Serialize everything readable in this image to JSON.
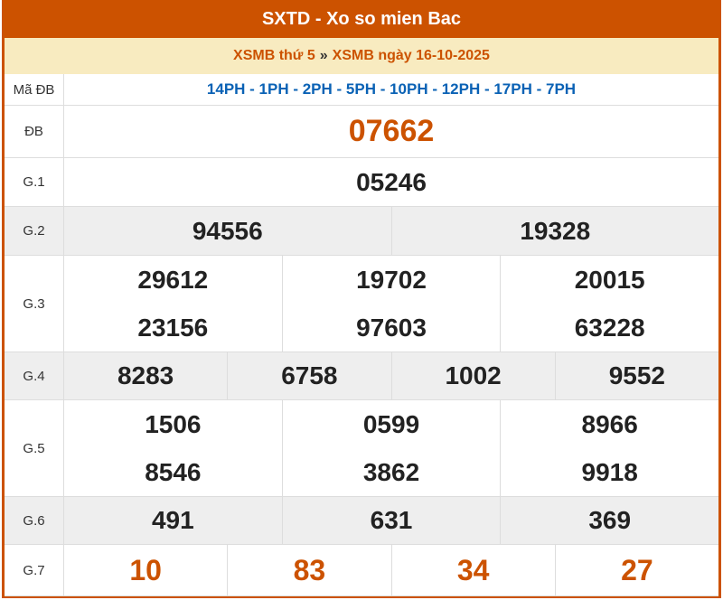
{
  "title": "SXTD - Xo so mien Bac",
  "subtitle": {
    "link1": "XSMB thứ 5",
    "separator": "»",
    "link2": "XSMB ngày 16-10-2025"
  },
  "colors": {
    "brand": "#cc5200",
    "code_blue": "#0a62b5",
    "subtitle_bg": "#f8ebc0"
  },
  "rows": {
    "ma_db": {
      "label": "Mã ĐB",
      "value": "14PH - 1PH - 2PH - 5PH - 10PH - 12PH - 17PH - 7PH"
    },
    "db": {
      "label": "ĐB",
      "values": [
        "07662"
      ]
    },
    "g1": {
      "label": "G.1",
      "values": [
        "05246"
      ]
    },
    "g2": {
      "label": "G.2",
      "values": [
        "94556",
        "19328"
      ]
    },
    "g3": {
      "label": "G.3",
      "values": [
        "29612",
        "19702",
        "20015",
        "23156",
        "97603",
        "63228"
      ]
    },
    "g4": {
      "label": "G.4",
      "values": [
        "8283",
        "6758",
        "1002",
        "9552"
      ]
    },
    "g5": {
      "label": "G.5",
      "values": [
        "1506",
        "0599",
        "8966",
        "8546",
        "3862",
        "9918"
      ]
    },
    "g6": {
      "label": "G.6",
      "values": [
        "491",
        "631",
        "369"
      ]
    },
    "g7": {
      "label": "G.7",
      "values": [
        "10",
        "83",
        "34",
        "27"
      ]
    }
  }
}
